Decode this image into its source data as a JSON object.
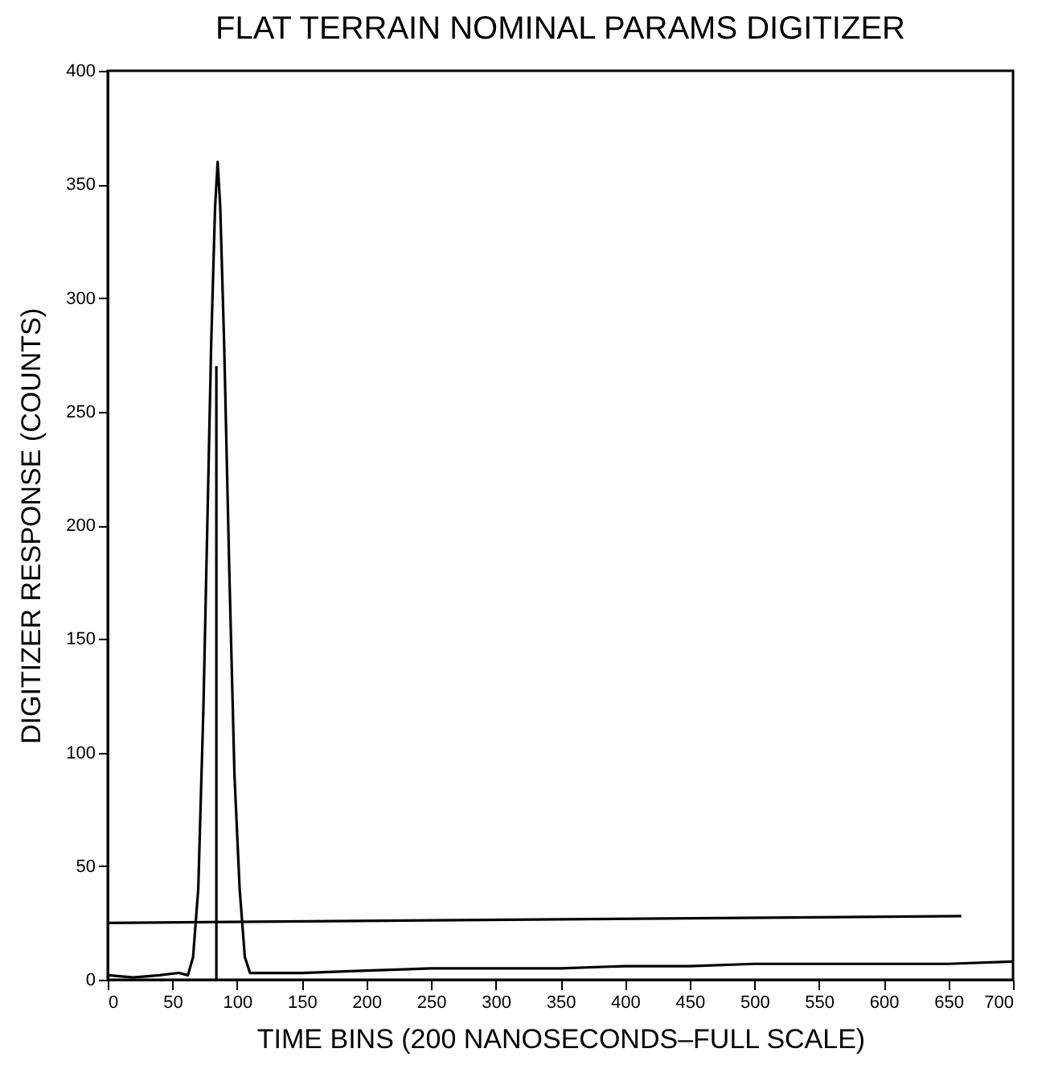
{
  "chart_data": {
    "type": "line",
    "title": "FLAT TERRAIN NOMINAL PARAMS DIGITIZER",
    "xlabel": "TIME BINS (200 NANOSECONDS–FULL SCALE)",
    "ylabel": "DIGITIZER RESPONSE (COUNTS)",
    "xlim": [
      0,
      700
    ],
    "ylim": [
      0,
      400
    ],
    "xticks": [
      0,
      50,
      100,
      150,
      200,
      250,
      300,
      350,
      400,
      450,
      500,
      550,
      600,
      650,
      700
    ],
    "yticks": [
      0,
      50,
      100,
      150,
      200,
      250,
      300,
      350,
      400
    ],
    "grid": false,
    "marker": "none",
    "line_style": "solid",
    "series": [
      {
        "color": "#000000",
        "x": [
          0,
          20,
          40,
          55,
          62,
          66,
          70,
          74,
          77,
          80,
          83,
          85,
          87,
          90,
          94,
          98,
          102,
          106,
          110,
          150,
          200,
          250,
          300,
          350,
          400,
          450,
          500,
          550,
          600,
          650,
          700
        ],
        "values": [
          2,
          1,
          2,
          3,
          2,
          10,
          40,
          120,
          200,
          280,
          340,
          360,
          340,
          280,
          180,
          90,
          40,
          10,
          3,
          3,
          4,
          5,
          5,
          5,
          6,
          6,
          7,
          7,
          7,
          7,
          8
        ]
      },
      {
        "color": "#000000",
        "x": [
          84,
          84
        ],
        "values": [
          0,
          270
        ]
      },
      {
        "color": "#000000",
        "x": [
          0,
          660
        ],
        "values": [
          25,
          28
        ]
      }
    ]
  }
}
